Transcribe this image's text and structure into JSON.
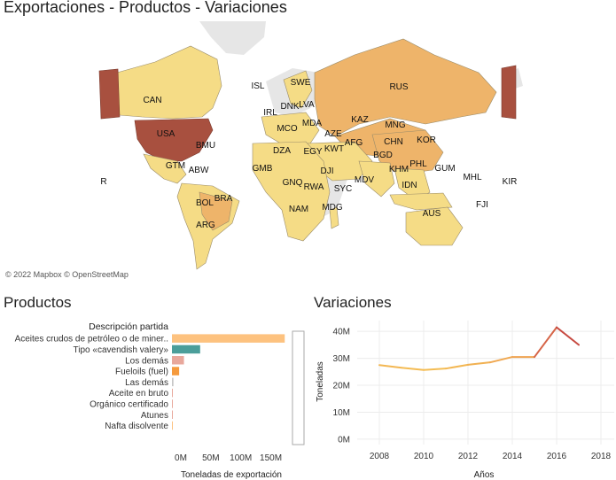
{
  "dashboard": {
    "title": "Exportaciones - Productos - Variaciones"
  },
  "map": {
    "attribution": "© 2022 Mapbox © OpenStreetMap",
    "colors": {
      "water": "#ffffff",
      "land_nodata": "#e6e6e6",
      "low": "#f5dc86",
      "mid": "#eeb46a",
      "high": "#a8503f"
    },
    "country_labels": [
      "CAN",
      "USA",
      "BMU",
      "GTM",
      "ABW",
      "BRA",
      "BOL",
      "ARG",
      "ISL",
      "SWE",
      "IRL",
      "DNK",
      "LVA",
      "RUS",
      "KAZ",
      "MNG",
      "CHN",
      "KOR",
      "MCO",
      "MDA",
      "AZE",
      "DZA",
      "EGY",
      "KWT",
      "AFG",
      "BGD",
      "KHM",
      "PHL",
      "GUM",
      "MHL",
      "KIR",
      "GMB",
      "DJI",
      "GNQ",
      "RWA",
      "SYC",
      "MDV",
      "IDN",
      "FJI",
      "AUS",
      "NAM",
      "MDG",
      "R"
    ]
  },
  "products": {
    "section_title": "Productos",
    "column_header": "Descripción partida",
    "x_axis_label": "Toneladas de exportación",
    "x_ticks": [
      "0M",
      "50M",
      "100M",
      "150M"
    ]
  },
  "variations": {
    "section_title": "Variaciones",
    "y_axis_label": "Toneladas",
    "x_axis_label": "Años",
    "y_ticks": [
      "0M",
      "10M",
      "20M",
      "30M",
      "40M"
    ],
    "x_ticks": [
      "2008",
      "2010",
      "2012",
      "2014",
      "2016",
      "2018"
    ]
  },
  "chart_data": [
    {
      "type": "bar",
      "orientation": "horizontal",
      "categories": [
        "Aceites crudos de petróleo o de miner..",
        "Tipo «cavendish valery»",
        "Los demás",
        "Fueloils (fuel)",
        "Las demás",
        "Aceite en bruto",
        "Orgánico certificado",
        "Atunes",
        "Nafta disolvente"
      ],
      "values": [
        188000000,
        47000000,
        20000000,
        12000000,
        2500000,
        1200000,
        900000,
        700000,
        500000
      ],
      "colors": [
        "#fdc27f",
        "#4b9e9a",
        "#e8a89c",
        "#f59a3d",
        "#c7c7c7",
        "#e8a89c",
        "#e8a89c",
        "#e8a89c",
        "#fdc27f"
      ],
      "xlabel": "Toneladas de exportación",
      "xlim": [
        0,
        195000000
      ]
    },
    {
      "type": "line",
      "x": [
        2008,
        2009,
        2010,
        2011,
        2012,
        2013,
        2014,
        2015,
        2016,
        2017
      ],
      "values": [
        27500000,
        26500000,
        25700000,
        26200000,
        27600000,
        28500000,
        30500000,
        30500000,
        41500000,
        35000000
      ],
      "xlabel": "Años",
      "ylabel": "Toneladas",
      "xlim": [
        2007,
        2018.6
      ],
      "ylim": [
        -2000000,
        44000000
      ],
      "grid": true
    }
  ]
}
